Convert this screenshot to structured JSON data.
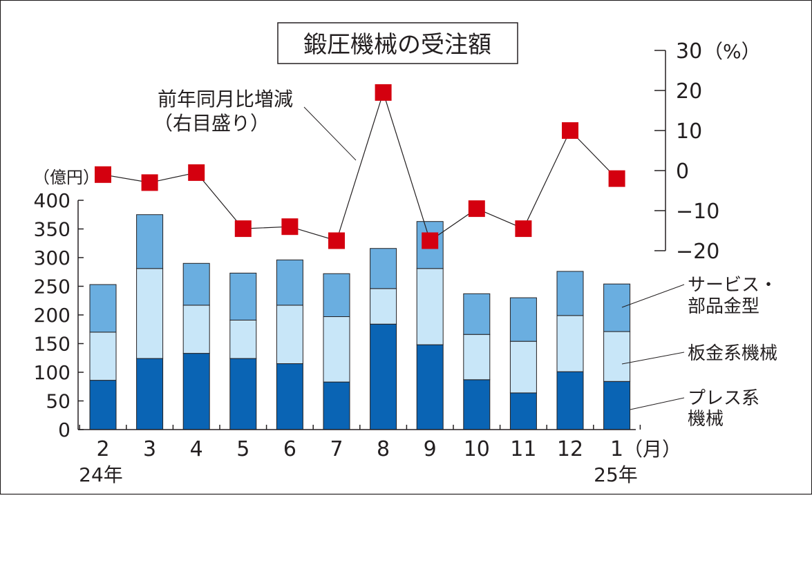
{
  "chart_data": {
    "type": "bar",
    "title": "鍛圧機械の受注額",
    "left_axis": {
      "unit_label": "（億円）",
      "ylim": [
        0,
        400
      ],
      "ticks": [
        "0",
        "50",
        "100",
        "150",
        "200",
        "250",
        "300",
        "350",
        "400"
      ]
    },
    "right_axis": {
      "unit_label": "（%）",
      "ylim": [
        -20,
        30
      ],
      "ticks": [
        "−20",
        "−10",
        "0",
        "10",
        "20",
        "30"
      ]
    },
    "categories": [
      "2",
      "3",
      "4",
      "5",
      "6",
      "7",
      "8",
      "9",
      "10",
      "11",
      "12",
      "1"
    ],
    "x_unit_label": "（月）",
    "year_labels": {
      "start": "24年",
      "end": "25年"
    },
    "series": [
      {
        "name_lines": [
          "プレス系",
          "機械"
        ],
        "color": "#0a64b4",
        "values": [
          86,
          124,
          133,
          124,
          115,
          83,
          184,
          148,
          87,
          64,
          101,
          84
        ]
      },
      {
        "name_lines": [
          "板金系機械"
        ],
        "color": "#c8e6f8",
        "values": [
          84,
          157,
          84,
          67,
          102,
          114,
          62,
          133,
          79,
          90,
          98,
          87
        ]
      },
      {
        "name_lines": [
          "サービス・",
          "部品金型"
        ],
        "color": "#6aaee0",
        "values": [
          83,
          94,
          73,
          82,
          79,
          75,
          70,
          82,
          71,
          76,
          77,
          83
        ]
      }
    ],
    "line_series": {
      "name_lines": [
        "前年同月比増減",
        "（右目盛り）"
      ],
      "color": "#d4000f",
      "axis": "right",
      "values": [
        -1,
        -3,
        -0.5,
        -14.5,
        -14,
        -17.5,
        19.5,
        -17.5,
        -9.5,
        -14.5,
        10,
        -2
      ]
    },
    "legend_placement": "right-of-bars",
    "grid": false
  }
}
